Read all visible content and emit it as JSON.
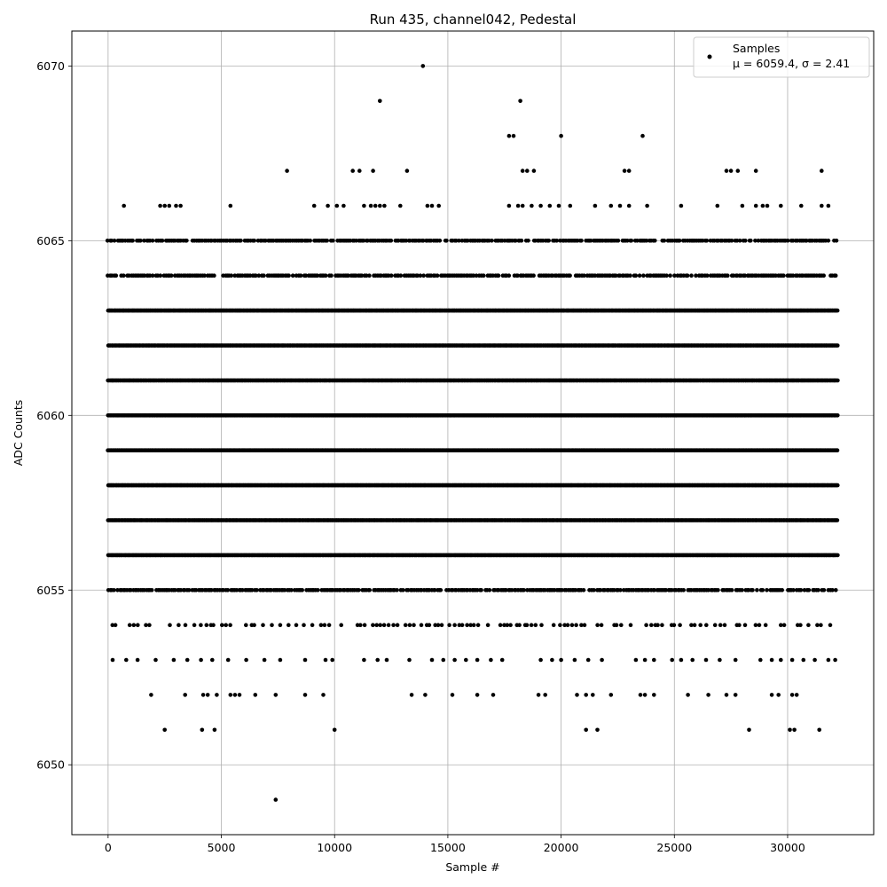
{
  "chart_data": {
    "type": "scatter",
    "title": "Run 435, channel042, Pedestal",
    "xlabel": "Sample #",
    "ylabel": "ADC Counts",
    "xlim": [
      -1600,
      33800
    ],
    "ylim": [
      6048,
      6071
    ],
    "x_ticks": [
      0,
      5000,
      10000,
      15000,
      20000,
      25000,
      30000
    ],
    "y_ticks": [
      6050,
      6055,
      6060,
      6065,
      6070
    ],
    "grid": true,
    "legend_position": "top-right",
    "marker_color": "#000000",
    "series": [
      {
        "name": "Samples",
        "stats_label": "μ = 6059.4, σ = 2.41",
        "x_range": [
          0,
          32200
        ],
        "levels": [
          {
            "y": 6056,
            "density": "dense"
          },
          {
            "y": 6057,
            "density": "dense"
          },
          {
            "y": 6058,
            "density": "dense"
          },
          {
            "y": 6059,
            "density": "dense"
          },
          {
            "y": 6060,
            "density": "dense"
          },
          {
            "y": 6061,
            "density": "dense"
          },
          {
            "y": 6062,
            "density": "dense"
          },
          {
            "y": 6063,
            "density": "dense"
          },
          {
            "y": 6064,
            "density": "medium"
          },
          {
            "y": 6055,
            "density": "medium"
          },
          {
            "y": 6065,
            "density": "medium"
          },
          {
            "y": 6054,
            "density": "sparse"
          }
        ],
        "outliers": [
          {
            "x": 7400,
            "y": 6049
          },
          {
            "x": 2500,
            "y": 6051
          },
          {
            "x": 4150,
            "y": 6051
          },
          {
            "x": 4700,
            "y": 6051
          },
          {
            "x": 10000,
            "y": 6051
          },
          {
            "x": 21100,
            "y": 6051
          },
          {
            "x": 21600,
            "y": 6051
          },
          {
            "x": 28300,
            "y": 6051
          },
          {
            "x": 30100,
            "y": 6051
          },
          {
            "x": 30300,
            "y": 6051
          },
          {
            "x": 31400,
            "y": 6051
          },
          {
            "x": 1900,
            "y": 6052
          },
          {
            "x": 3400,
            "y": 6052
          },
          {
            "x": 4200,
            "y": 6052
          },
          {
            "x": 4400,
            "y": 6052
          },
          {
            "x": 4800,
            "y": 6052
          },
          {
            "x": 5400,
            "y": 6052
          },
          {
            "x": 5600,
            "y": 6052
          },
          {
            "x": 5800,
            "y": 6052
          },
          {
            "x": 6500,
            "y": 6052
          },
          {
            "x": 7400,
            "y": 6052
          },
          {
            "x": 8700,
            "y": 6052
          },
          {
            "x": 9500,
            "y": 6052
          },
          {
            "x": 13400,
            "y": 6052
          },
          {
            "x": 14000,
            "y": 6052
          },
          {
            "x": 15200,
            "y": 6052
          },
          {
            "x": 16300,
            "y": 6052
          },
          {
            "x": 17000,
            "y": 6052
          },
          {
            "x": 19000,
            "y": 6052
          },
          {
            "x": 19300,
            "y": 6052
          },
          {
            "x": 20700,
            "y": 6052
          },
          {
            "x": 21100,
            "y": 6052
          },
          {
            "x": 21400,
            "y": 6052
          },
          {
            "x": 22200,
            "y": 6052
          },
          {
            "x": 23500,
            "y": 6052
          },
          {
            "x": 23700,
            "y": 6052
          },
          {
            "x": 24100,
            "y": 6052
          },
          {
            "x": 25600,
            "y": 6052
          },
          {
            "x": 26500,
            "y": 6052
          },
          {
            "x": 27300,
            "y": 6052
          },
          {
            "x": 27700,
            "y": 6052
          },
          {
            "x": 29300,
            "y": 6052
          },
          {
            "x": 29600,
            "y": 6052
          },
          {
            "x": 30200,
            "y": 6052
          },
          {
            "x": 30400,
            "y": 6052
          },
          {
            "x": 200,
            "y": 6053
          },
          {
            "x": 800,
            "y": 6053
          },
          {
            "x": 1300,
            "y": 6053
          },
          {
            "x": 2100,
            "y": 6053
          },
          {
            "x": 2900,
            "y": 6053
          },
          {
            "x": 3500,
            "y": 6053
          },
          {
            "x": 4100,
            "y": 6053
          },
          {
            "x": 4600,
            "y": 6053
          },
          {
            "x": 5300,
            "y": 6053
          },
          {
            "x": 6100,
            "y": 6053
          },
          {
            "x": 6900,
            "y": 6053
          },
          {
            "x": 7600,
            "y": 6053
          },
          {
            "x": 8700,
            "y": 6053
          },
          {
            "x": 9600,
            "y": 6053
          },
          {
            "x": 9900,
            "y": 6053
          },
          {
            "x": 11300,
            "y": 6053
          },
          {
            "x": 11900,
            "y": 6053
          },
          {
            "x": 12300,
            "y": 6053
          },
          {
            "x": 13300,
            "y": 6053
          },
          {
            "x": 14300,
            "y": 6053
          },
          {
            "x": 14800,
            "y": 6053
          },
          {
            "x": 15300,
            "y": 6053
          },
          {
            "x": 15800,
            "y": 6053
          },
          {
            "x": 16300,
            "y": 6053
          },
          {
            "x": 16900,
            "y": 6053
          },
          {
            "x": 17400,
            "y": 6053
          },
          {
            "x": 19100,
            "y": 6053
          },
          {
            "x": 19600,
            "y": 6053
          },
          {
            "x": 20000,
            "y": 6053
          },
          {
            "x": 20600,
            "y": 6053
          },
          {
            "x": 21200,
            "y": 6053
          },
          {
            "x": 21800,
            "y": 6053
          },
          {
            "x": 23300,
            "y": 6053
          },
          {
            "x": 23700,
            "y": 6053
          },
          {
            "x": 24100,
            "y": 6053
          },
          {
            "x": 24900,
            "y": 6053
          },
          {
            "x": 25300,
            "y": 6053
          },
          {
            "x": 25800,
            "y": 6053
          },
          {
            "x": 26400,
            "y": 6053
          },
          {
            "x": 27000,
            "y": 6053
          },
          {
            "x": 27700,
            "y": 6053
          },
          {
            "x": 28800,
            "y": 6053
          },
          {
            "x": 29300,
            "y": 6053
          },
          {
            "x": 29700,
            "y": 6053
          },
          {
            "x": 30200,
            "y": 6053
          },
          {
            "x": 30700,
            "y": 6053
          },
          {
            "x": 31200,
            "y": 6053
          },
          {
            "x": 31800,
            "y": 6053
          },
          {
            "x": 32100,
            "y": 6053
          },
          {
            "x": 700,
            "y": 6066
          },
          {
            "x": 2300,
            "y": 6066
          },
          {
            "x": 2500,
            "y": 6066
          },
          {
            "x": 2700,
            "y": 6066
          },
          {
            "x": 3000,
            "y": 6066
          },
          {
            "x": 3200,
            "y": 6066
          },
          {
            "x": 5400,
            "y": 6066
          },
          {
            "x": 9100,
            "y": 6066
          },
          {
            "x": 9700,
            "y": 6066
          },
          {
            "x": 10100,
            "y": 6066
          },
          {
            "x": 10400,
            "y": 6066
          },
          {
            "x": 11300,
            "y": 6066
          },
          {
            "x": 11600,
            "y": 6066
          },
          {
            "x": 11800,
            "y": 6066
          },
          {
            "x": 12000,
            "y": 6066
          },
          {
            "x": 12200,
            "y": 6066
          },
          {
            "x": 12900,
            "y": 6066
          },
          {
            "x": 14100,
            "y": 6066
          },
          {
            "x": 14300,
            "y": 6066
          },
          {
            "x": 14600,
            "y": 6066
          },
          {
            "x": 17700,
            "y": 6066
          },
          {
            "x": 18100,
            "y": 6066
          },
          {
            "x": 18300,
            "y": 6066
          },
          {
            "x": 18700,
            "y": 6066
          },
          {
            "x": 19100,
            "y": 6066
          },
          {
            "x": 19500,
            "y": 6066
          },
          {
            "x": 19900,
            "y": 6066
          },
          {
            "x": 20400,
            "y": 6066
          },
          {
            "x": 21500,
            "y": 6066
          },
          {
            "x": 22200,
            "y": 6066
          },
          {
            "x": 22600,
            "y": 6066
          },
          {
            "x": 23000,
            "y": 6066
          },
          {
            "x": 23800,
            "y": 6066
          },
          {
            "x": 25300,
            "y": 6066
          },
          {
            "x": 26900,
            "y": 6066
          },
          {
            "x": 28000,
            "y": 6066
          },
          {
            "x": 28600,
            "y": 6066
          },
          {
            "x": 28900,
            "y": 6066
          },
          {
            "x": 29100,
            "y": 6066
          },
          {
            "x": 29700,
            "y": 6066
          },
          {
            "x": 30600,
            "y": 6066
          },
          {
            "x": 31500,
            "y": 6066
          },
          {
            "x": 31800,
            "y": 6066
          },
          {
            "x": 7900,
            "y": 6067
          },
          {
            "x": 10800,
            "y": 6067
          },
          {
            "x": 11100,
            "y": 6067
          },
          {
            "x": 11700,
            "y": 6067
          },
          {
            "x": 13200,
            "y": 6067
          },
          {
            "x": 18300,
            "y": 6067
          },
          {
            "x": 18500,
            "y": 6067
          },
          {
            "x": 18800,
            "y": 6067
          },
          {
            "x": 22800,
            "y": 6067
          },
          {
            "x": 23000,
            "y": 6067
          },
          {
            "x": 27300,
            "y": 6067
          },
          {
            "x": 27500,
            "y": 6067
          },
          {
            "x": 27800,
            "y": 6067
          },
          {
            "x": 28600,
            "y": 6067
          },
          {
            "x": 31500,
            "y": 6067
          },
          {
            "x": 17700,
            "y": 6068
          },
          {
            "x": 17900,
            "y": 6068
          },
          {
            "x": 20000,
            "y": 6068
          },
          {
            "x": 23600,
            "y": 6068
          },
          {
            "x": 12000,
            "y": 6069
          },
          {
            "x": 18200,
            "y": 6069
          },
          {
            "x": 13900,
            "y": 6070
          }
        ]
      }
    ]
  }
}
